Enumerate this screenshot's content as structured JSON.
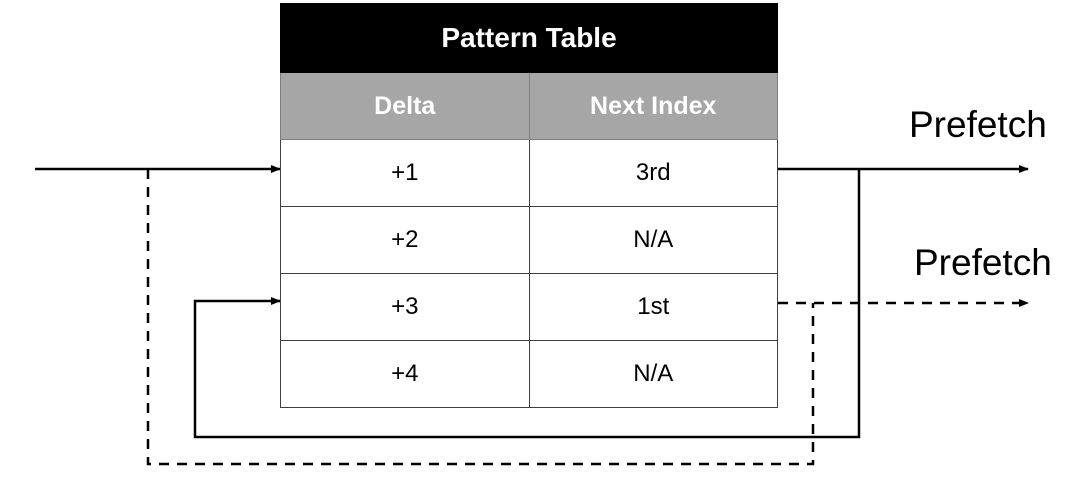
{
  "pattern_table": {
    "title": "Pattern Table",
    "columns": [
      "Delta",
      "Next Index"
    ],
    "rows": [
      {
        "delta": "+1",
        "next_index": "3rd"
      },
      {
        "delta": "+2",
        "next_index": "N/A"
      },
      {
        "delta": "+3",
        "next_index": "1st"
      },
      {
        "delta": "+4",
        "next_index": "N/A"
      }
    ]
  },
  "outputs": {
    "prefetch_top": "Prefetch",
    "prefetch_bottom": "Prefetch"
  }
}
